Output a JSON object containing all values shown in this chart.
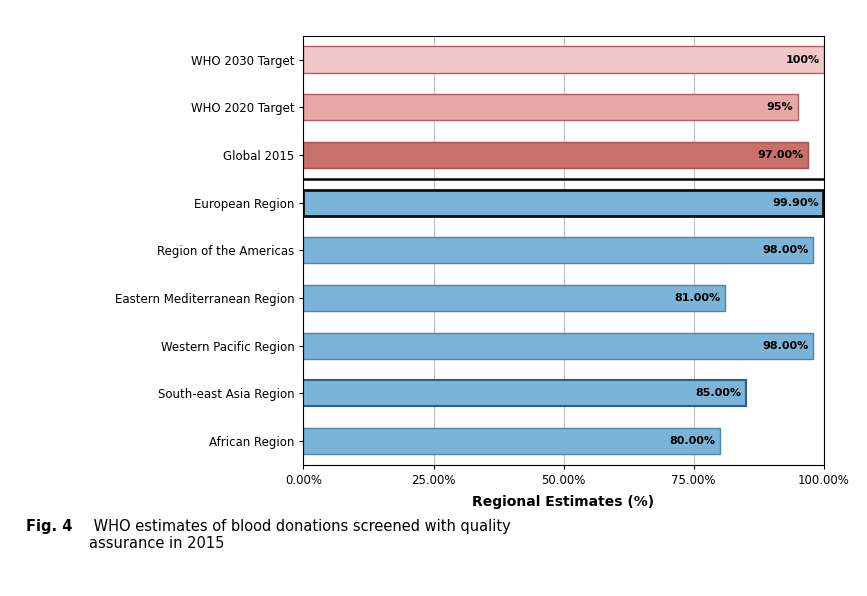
{
  "categories": [
    "African Region",
    "South-east Asia Region",
    "Western Pacific Region",
    "Eastern Mediterranean Region",
    "Region of the Americas",
    "European Region",
    "Global 2015",
    "WHO 2020 Target",
    "WHO 2030 Target"
  ],
  "values": [
    80.0,
    85.0,
    98.0,
    81.0,
    98.0,
    99.9,
    97.0,
    95.0,
    100.0
  ],
  "bar_colors": [
    "#7ab4d8",
    "#7ab4d8",
    "#7ab4d8",
    "#7ab4d8",
    "#7ab4d8",
    "#7ab4d8",
    "#c9706a",
    "#e8a8a8",
    "#f0c8c8"
  ],
  "edge_colors": [
    "#4a86b0",
    "#2a608a",
    "#4a86b0",
    "#4a86b0",
    "#4a86b0",
    "#111111",
    "#a05050",
    "#b06060",
    "#b06060"
  ],
  "edge_widths": [
    1.0,
    1.5,
    1.0,
    1.0,
    1.0,
    2.0,
    1.0,
    1.0,
    1.0
  ],
  "labels": [
    "80.00%",
    "85.00%",
    "98.00%",
    "81.00%",
    "98.00%",
    "99.90%",
    "97.00%",
    "95%",
    "100%"
  ],
  "xlabel": "Regional Estimates (%)",
  "xlim": [
    0,
    100
  ],
  "xticks": [
    0,
    25,
    50,
    75,
    100
  ],
  "xtick_labels": [
    "0.00%",
    "25.00%",
    "50.00%",
    "75.00%",
    "100.00%"
  ],
  "background_color": "#ffffff",
  "plot_bg_color": "#ffffff",
  "grid_color": "#c0c0c0",
  "bar_height": 0.55,
  "fig_caption_bold": "Fig. 4",
  "fig_caption_normal": "  WHO estimates of blood donations screened with quality\nassurance in 2015"
}
